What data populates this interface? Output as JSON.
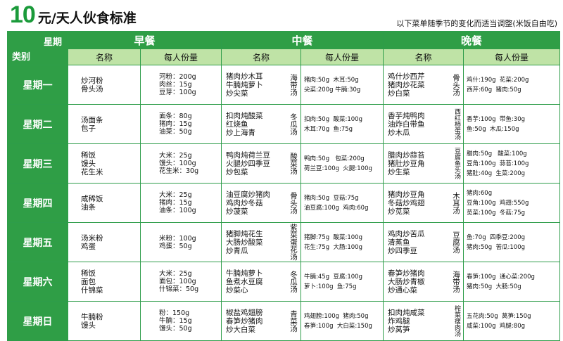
{
  "header": {
    "price": "10",
    "title_text": "元/天人伙食标准",
    "note": "以下菜单随季节的变化而适当调整(米饭自由吃)"
  },
  "table": {
    "corner_top": "星期",
    "corner_bottom": "类别",
    "meals": [
      "早餐",
      "中餐",
      "晚餐"
    ],
    "col_name": "名称",
    "col_portion": "每人份量",
    "rows": [
      {
        "day": "星期一",
        "breakfast_names": "炒河粉\n骨头汤",
        "breakfast_portions": "河粉：200g\n肉丝：15g\n豆芽：100g",
        "lunch_names": "猪肉炒木耳\n牛腩炖萝卜\n炒尖菜",
        "lunch_soup": "海带汤",
        "lunch_portions": "猪肉:50g  木耳:50g\n尖菜:200g 牛腩:30g",
        "dinner_names": "鸡什炒西芹\n猪肉炒花菜\n炒白菜",
        "dinner_soup": "骨头汤",
        "dinner_portions": "鸡什:190g  花菜:200g\n西芹:60g  猪肉:50g"
      },
      {
        "day": "星期二",
        "breakfast_names": "汤面条\n包子",
        "breakfast_portions": "面条：80g\n猪肉：15g\n油菜：50g",
        "lunch_names": "扣肉炖酸菜\n红烧鱼\n炒上海青",
        "lunch_soup": "冬瓜汤",
        "lunch_portions": "扣肉:50g  酸菜:100g\n木耳:70g  鱼:75g",
        "dinner_names": "香芋炖鸭肉\n油炸白带鱼\n炒木瓜",
        "dinner_soup": "西红柿蛋汤",
        "dinner_portions": "香芋:100g  带鱼:30g\n鱼:50g  木瓜:150g"
      },
      {
        "day": "星期三",
        "breakfast_names": "稀饭\n馒头\n花生米",
        "breakfast_portions": "大米：25g\n馒头：100g\n花生米：30g",
        "lunch_names": "鸭肉炖荷兰豆\n火腿炒四季豆\n炒包菜",
        "lunch_soup": "酸菜汤",
        "lunch_portions": "鸭肉:50g   包菜:200g\n荷兰豆:100g  火腿:100g",
        "dinner_names": "腊肉炒蒜苔\n猪肚炒豆角\n炒生菜",
        "dinner_soup": "豆腐鱼头汤",
        "dinner_portions": "腊肉:50g   酸菜:100g\n豆角:100g  蒜苔:100g\n猪肚:40g  生菜:200g"
      },
      {
        "day": "星期四",
        "breakfast_names": "咸稀饭\n油条",
        "breakfast_portions": "大米：25g\n猪肉：15g\n油条：100g",
        "lunch_names": "油豆腐炒猪肉\n鸡肉炒冬菇\n炒菠菜",
        "lunch_soup": "骨头汤",
        "lunch_portions": "猪肉:50g  豆菇:75g\n油豆腐:100g  鸡肉:60g",
        "dinner_names": "猪肉炒豆角\n冬菇炒鸡翅\n炒苋菜",
        "dinner_soup": "木耳汤",
        "dinner_portions": "猪肉:60g\n豆角:100g  鸡翅:550g\n苋菜:100g  冬菇:75g"
      },
      {
        "day": "星期五",
        "breakfast_names": "汤米粉\n鸡蛋",
        "breakfast_portions": "米粉：100g\n鸡蛋：50g",
        "lunch_names": "猪脚炖花生\n大肠炒酸菜\n炒青瓜",
        "lunch_soup": "紫菜蛋花汤",
        "lunch_portions": "猪脚:75g  酸菜:100g\n花生:75g  大肠:100g",
        "dinner_names": "鸡肉炒苦瓜\n清蒸鱼\n炒四季豆",
        "dinner_soup": "豆腐汤",
        "dinner_portions": "鱼:70g  四季豆:200g\n猪肉:50g  苦瓜:100g"
      },
      {
        "day": "星期六",
        "breakfast_names": "稀饭\n面包\n什锦菜",
        "breakfast_portions": "大米：25g\n面包：100g\n什锦菜：50g",
        "lunch_names": "牛腩炖萝卜\n鱼煮水豆腐\n炒菜心",
        "lunch_soup": "冬瓜汤",
        "lunch_portions": "牛腩:45g  豆腐:100g\n萝卜:100g  鱼:75g",
        "dinner_names": "春笋炒猪肉\n大肠炒青椒\n炒通心菜",
        "dinner_soup": "海带汤",
        "dinner_portions": "春笋:100g  通心菜:200g\n猪肉:50g  大肠:50g"
      },
      {
        "day": "星期日",
        "breakfast_names": "牛腩粉\n馒头",
        "breakfast_portions": "粉：150g\n牛腩：15g\n馒头：50g",
        "lunch_names": "椒盐鸡翅膀\n春笋炒猪肉\n炒大白菜",
        "lunch_soup": "青菜汤",
        "lunch_portions": "鸡翅膀:100g  猪肉:50g\n春笋:100g  大白菜:150g",
        "dinner_names": "扣肉炖咸菜\n炸鸡腿\n炒莴笋",
        "dinner_soup": "榨菜瘦肉汤",
        "dinner_portions": "五花肉:50g  莴笋:150g\n咸菜:100g  鸡腿:80g"
      }
    ]
  }
}
